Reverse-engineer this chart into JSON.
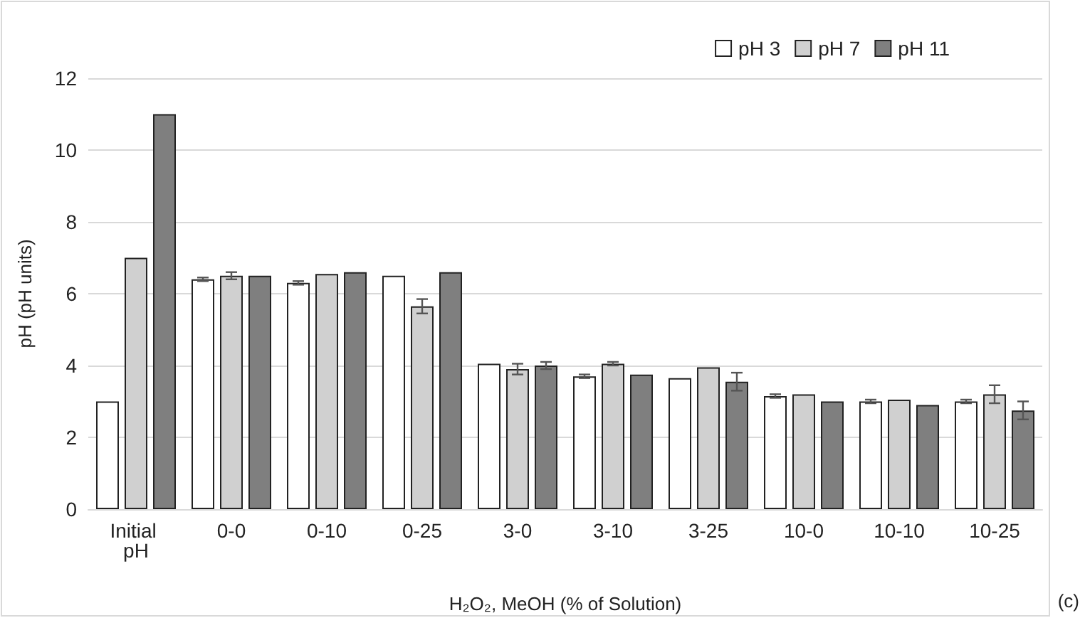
{
  "chart_data": {
    "type": "bar",
    "xlabel": "H₂O₂, MeOH (% of Solution)",
    "ylabel": "pH (pH units)",
    "categories": [
      "Initial pH",
      "0-0",
      "0-10",
      "0-25",
      "3-0",
      "3-10",
      "3-25",
      "10-0",
      "10-10",
      "10-25"
    ],
    "series": [
      {
        "name": "pH 3",
        "color": "#ffffff",
        "values": [
          3.0,
          6.4,
          6.3,
          6.5,
          4.05,
          3.7,
          3.65,
          3.15,
          3.0,
          3.0
        ],
        "errors": [
          null,
          0.05,
          0.05,
          null,
          null,
          0.05,
          null,
          0.05,
          0.05,
          0.05
        ]
      },
      {
        "name": "pH 7",
        "color": "#d0d0d0",
        "values": [
          7.0,
          6.5,
          6.55,
          5.65,
          3.9,
          4.05,
          3.95,
          3.2,
          3.05,
          3.2
        ],
        "errors": [
          null,
          0.1,
          null,
          0.2,
          0.15,
          0.05,
          null,
          null,
          null,
          0.25
        ]
      },
      {
        "name": "pH 11",
        "color": "#7f7f7f",
        "values": [
          11.0,
          6.5,
          6.6,
          6.6,
          4.0,
          3.75,
          3.55,
          3.0,
          2.9,
          2.75
        ],
        "errors": [
          null,
          null,
          null,
          null,
          0.1,
          null,
          0.25,
          null,
          null,
          0.25
        ]
      }
    ],
    "ylim": [
      0,
      12
    ],
    "yticks": [
      0,
      2,
      4,
      6,
      8,
      10,
      12
    ],
    "grid": "y",
    "legend": "top right",
    "annotations": [
      "(c)"
    ]
  }
}
